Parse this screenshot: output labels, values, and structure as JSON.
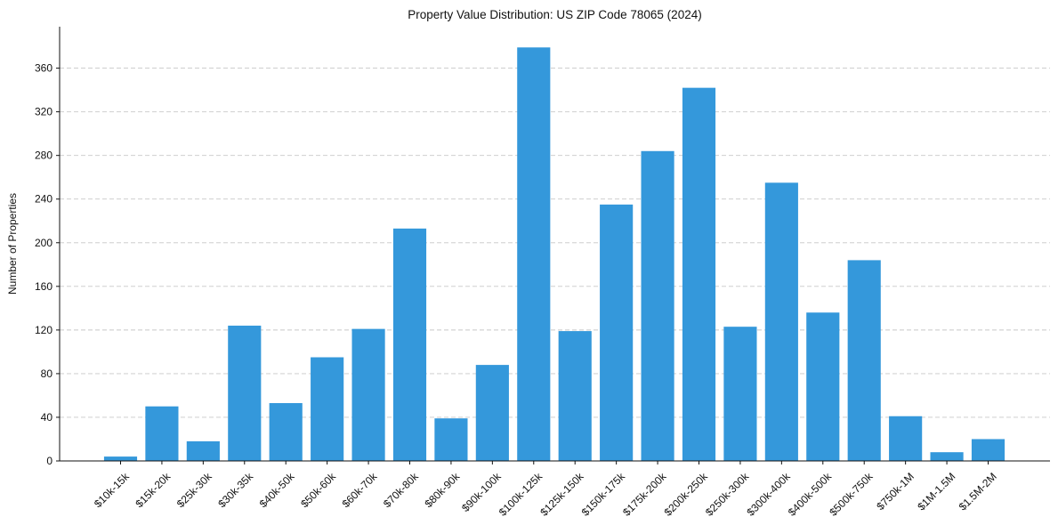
{
  "chart_data": {
    "type": "bar",
    "title": "Property Value Distribution: US ZIP Code 78065 (2024)",
    "xlabel": "",
    "ylabel": "Number of Properties",
    "categories": [
      "$10k-15k",
      "$15k-20k",
      "$25k-30k",
      "$30k-35k",
      "$40k-50k",
      "$50k-60k",
      "$60k-70k",
      "$70k-80k",
      "$80k-90k",
      "$90k-100k",
      "$100k-125k",
      "$125k-150k",
      "$150k-175k",
      "$175k-200k",
      "$200k-250k",
      "$250k-300k",
      "$300k-400k",
      "$400k-500k",
      "$500k-750k",
      "$750k-1M",
      "$1M-1.5M",
      "$1.5M-2M"
    ],
    "values": [
      4,
      50,
      18,
      124,
      53,
      95,
      121,
      213,
      39,
      88,
      379,
      119,
      235,
      284,
      342,
      123,
      255,
      136,
      184,
      41,
      8,
      20
    ],
    "yticks": [
      0,
      40,
      80,
      120,
      160,
      200,
      240,
      280,
      320,
      360
    ],
    "ylim": [
      0,
      398
    ],
    "grid": "y",
    "bar_color": "#3498db"
  }
}
